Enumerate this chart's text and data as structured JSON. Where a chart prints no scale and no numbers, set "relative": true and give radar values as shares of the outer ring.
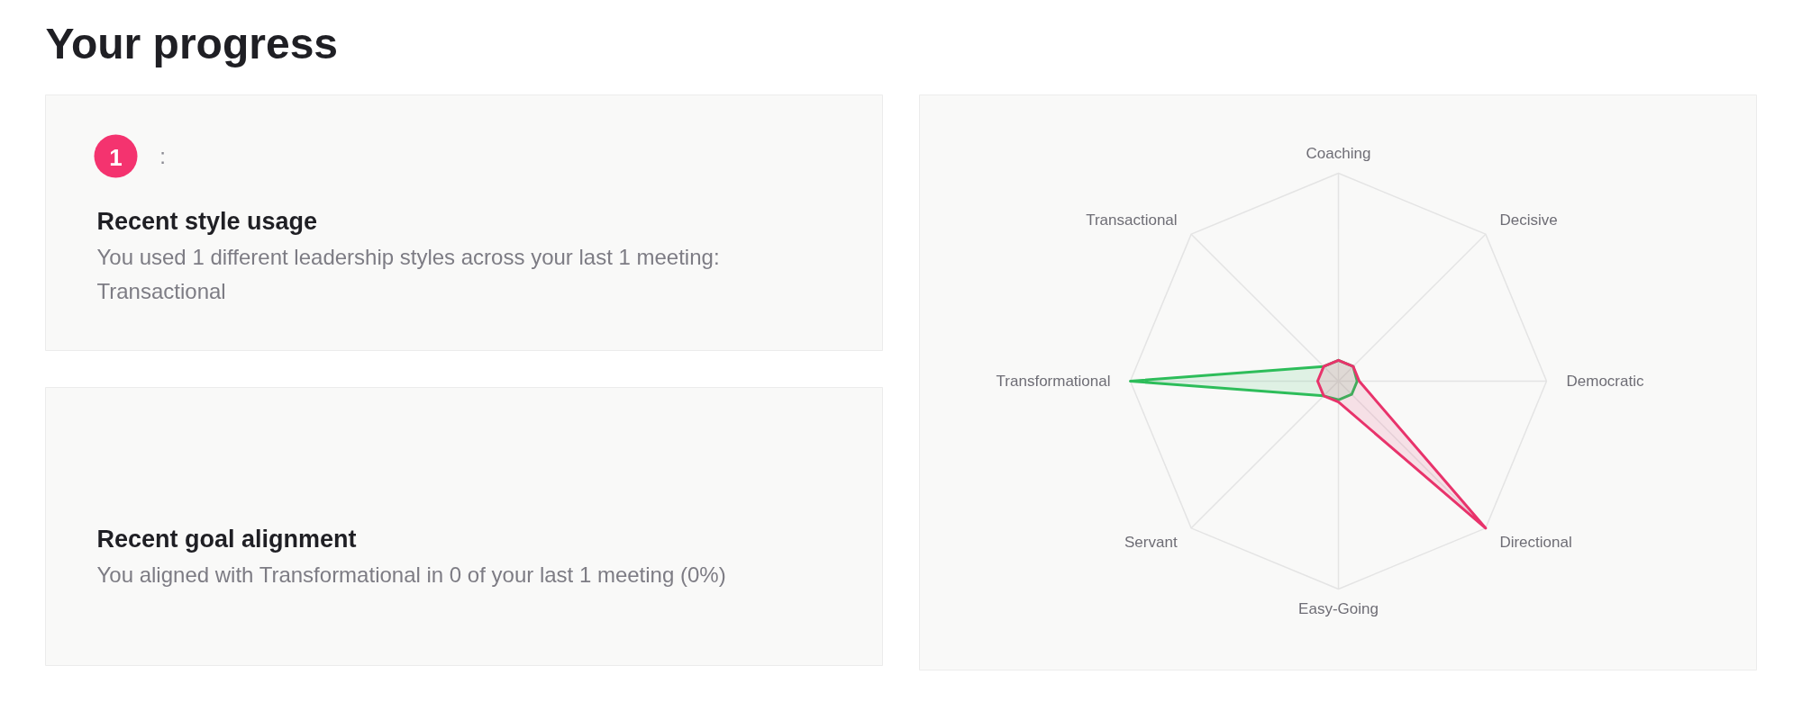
{
  "chart_data": [
    {
      "type": "other",
      "title": "Your progress"
    },
    {
      "type": "other",
      "title": "Recent style usage",
      "annotations": [
        "1",
        ":",
        "You used 1 different leadership styles across your last 1 meeting: Transactional"
      ]
    },
    {
      "type": "other",
      "title": "Recent goal alignment",
      "annotations": [
        "You aligned with Transformational in 0 of your last 1 meeting (0%)"
      ]
    },
    {
      "type": "radar",
      "categories": [
        "Coaching",
        "Decisive",
        "Democratic",
        "Directional",
        "Easy-Going",
        "Servant",
        "Transformational",
        "Transactional"
      ],
      "relative": true,
      "grid": true,
      "series": [
        {
          "color": "#2dbd5a",
          "values": [
            0.1,
            0.1,
            0.09,
            0.09,
            0.09,
            0.1,
            1,
            0.1
          ]
        },
        {
          "color": "#e8336b",
          "values": [
            0.1,
            0.1,
            0.1,
            1,
            0.1,
            0.1,
            0.1,
            0.1
          ]
        }
      ]
    }
  ]
}
